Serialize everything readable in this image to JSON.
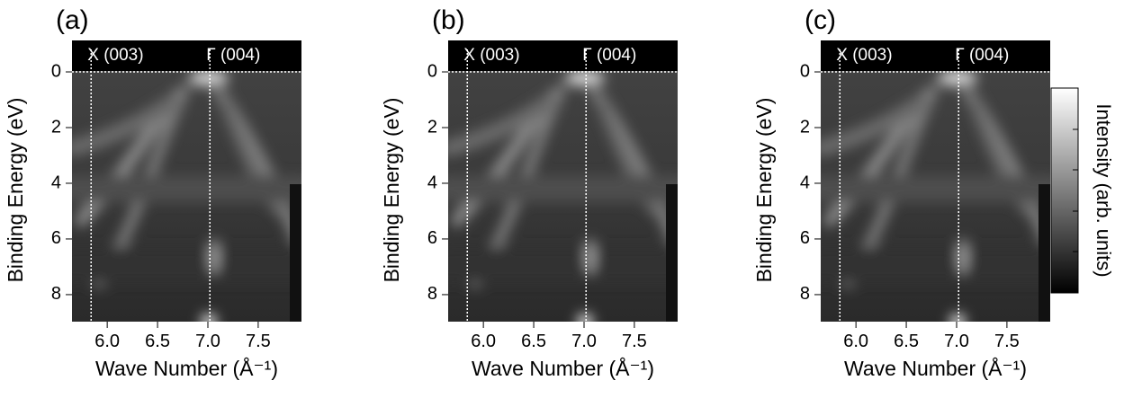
{
  "chart_data": [
    {
      "type": "heatmap",
      "title": "(a)",
      "xlabel": "Wave Number (Å⁻¹)",
      "ylabel": "Binding Energy (eV)",
      "xlim": [
        5.65,
        7.93
      ],
      "ylim": [
        -1.13,
        8.97
      ],
      "xticks": [
        {
          "value": 6,
          "label": "6.0"
        },
        6.5,
        {
          "value": 7,
          "label": "7.0"
        },
        7.5
      ],
      "yticks": [
        0,
        2,
        4,
        6,
        8
      ],
      "hline": 0,
      "annotations": [
        {
          "text": "X (003)",
          "x": 5.84
        },
        {
          "text": "Γ (004)",
          "x": 7.02
        }
      ]
    },
    {
      "type": "heatmap",
      "title": "(b)",
      "xlabel": "Wave Number (Å⁻¹)",
      "ylabel": "Binding Energy (eV)",
      "xlim": [
        5.65,
        7.93
      ],
      "ylim": [
        -1.13,
        8.97
      ],
      "xticks": [
        {
          "value": 6,
          "label": "6.0"
        },
        6.5,
        {
          "value": 7,
          "label": "7.0"
        },
        7.5
      ],
      "yticks": [
        0,
        2,
        4,
        6,
        8
      ],
      "hline": 0,
      "annotations": [
        {
          "text": "X (003)",
          "x": 5.84
        },
        {
          "text": "Γ (004)",
          "x": 7.02
        }
      ]
    },
    {
      "type": "heatmap",
      "title": "(c)",
      "xlabel": "Wave Number (Å⁻¹)",
      "ylabel": "Binding Energy (eV)",
      "xlim": [
        5.65,
        7.93
      ],
      "ylim": [
        -1.13,
        8.97
      ],
      "xticks": [
        {
          "value": 6,
          "label": "6.0"
        },
        6.5,
        {
          "value": 7,
          "label": "7.0"
        },
        7.5
      ],
      "yticks": [
        0,
        2,
        4,
        6,
        8
      ],
      "hline": 0,
      "annotations": [
        {
          "text": "X (003)",
          "x": 5.84
        },
        {
          "text": "Γ (004)",
          "x": 7.02
        }
      ],
      "colorbar_label": "Intensity (arb. units)"
    }
  ]
}
